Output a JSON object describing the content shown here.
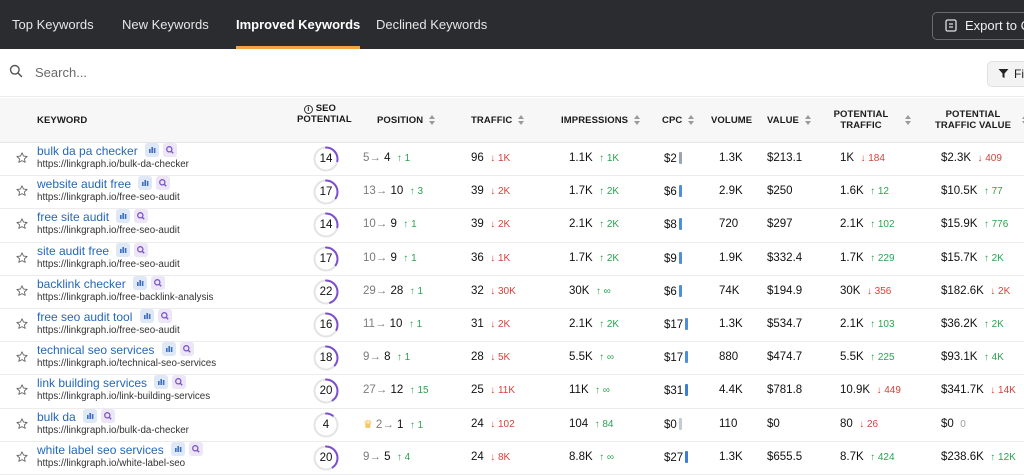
{
  "tabs": [
    {
      "label": "Top Keywords",
      "active": false
    },
    {
      "label": "New Keywords",
      "active": false
    },
    {
      "label": "Improved Keywords",
      "active": true
    },
    {
      "label": "Declined Keywords",
      "active": false
    }
  ],
  "export_label": "Export to CSV",
  "search": {
    "placeholder": "Search..."
  },
  "filter_label": "Filter",
  "columns": {
    "keyword": "KEYWORD",
    "seo_potential": "SEO POTENTIAL",
    "position": "POSITION",
    "traffic": "TRAFFIC",
    "impressions": "IMPRESSIONS",
    "cpc": "CPC",
    "volume": "VOLUME",
    "value": "VALUE",
    "potential_traffic_1": "POTENTIAL",
    "potential_traffic_2": "TRAFFIC",
    "potential_value_1": "POTENTIAL",
    "potential_value_2": "TRAFFIC VALUE"
  },
  "colors": {
    "up": "#2aa44f",
    "down": "#d8403a",
    "ring": "#7b4fd0",
    "link": "#2468b8"
  },
  "rows": [
    {
      "keyword": "bulk da pa checker",
      "url": "https://linkgraph.io/bulk-da-checker",
      "seo": "14",
      "seo_pct": 0.28,
      "pos_from": "5",
      "pos_to": "4",
      "pos_delta": "↑ 1",
      "pos_dir": "up",
      "crown": false,
      "traffic": "96",
      "traffic_delta": "↓ 1K",
      "traffic_dir": "down",
      "impr": "1.1K",
      "impr_delta": "↑ 1K",
      "impr_dir": "up",
      "cpc": "$2",
      "cpc_color": "#9aa4b5",
      "volume": "1.3K",
      "value": "$213.1",
      "pt": "1K",
      "pt_delta": "↓ 184",
      "pt_dir": "down",
      "ptv": "$2.3K",
      "ptv_delta": "↓ 409",
      "ptv_dir": "down"
    },
    {
      "keyword": "website audit free",
      "url": "https://linkgraph.io/free-seo-audit",
      "seo": "17",
      "seo_pct": 0.34,
      "pos_from": "13",
      "pos_to": "10",
      "pos_delta": "↑ 3",
      "pos_dir": "up",
      "crown": false,
      "traffic": "39",
      "traffic_delta": "↓ 2K",
      "traffic_dir": "down",
      "impr": "1.7K",
      "impr_delta": "↑ 2K",
      "impr_dir": "up",
      "cpc": "$6",
      "cpc_color": "#4f8fd6",
      "volume": "2.9K",
      "value": "$250",
      "pt": "1.6K",
      "pt_delta": "↑ 12",
      "pt_dir": "up",
      "ptv": "$10.5K",
      "ptv_delta": "↑ 77",
      "ptv_dir": "up"
    },
    {
      "keyword": "free site audit",
      "url": "https://linkgraph.io/free-seo-audit",
      "seo": "14",
      "seo_pct": 0.28,
      "pos_from": "10",
      "pos_to": "9",
      "pos_delta": "↑ 1",
      "pos_dir": "up",
      "crown": false,
      "traffic": "39",
      "traffic_delta": "↓ 2K",
      "traffic_dir": "down",
      "impr": "2.1K",
      "impr_delta": "↑ 2K",
      "impr_dir": "up",
      "cpc": "$8",
      "cpc_color": "#4f8fd6",
      "volume": "720",
      "value": "$297",
      "pt": "2.1K",
      "pt_delta": "↑ 102",
      "pt_dir": "up",
      "ptv": "$15.9K",
      "ptv_delta": "↑ 776",
      "ptv_dir": "up"
    },
    {
      "keyword": "site audit free",
      "url": "https://linkgraph.io/free-seo-audit",
      "seo": "17",
      "seo_pct": 0.34,
      "pos_from": "10",
      "pos_to": "9",
      "pos_delta": "↑ 1",
      "pos_dir": "up",
      "crown": false,
      "traffic": "36",
      "traffic_delta": "↓ 1K",
      "traffic_dir": "down",
      "impr": "1.7K",
      "impr_delta": "↑ 2K",
      "impr_dir": "up",
      "cpc": "$9",
      "cpc_color": "#4f8fd6",
      "volume": "1.9K",
      "value": "$332.4",
      "pt": "1.7K",
      "pt_delta": "↑ 229",
      "pt_dir": "up",
      "ptv": "$15.7K",
      "ptv_delta": "↑ 2K",
      "ptv_dir": "up"
    },
    {
      "keyword": "backlink checker",
      "url": "https://linkgraph.io/free-backlink-analysis",
      "seo": "22",
      "seo_pct": 0.44,
      "pos_from": "29",
      "pos_to": "28",
      "pos_delta": "↑ 1",
      "pos_dir": "up",
      "crown": false,
      "traffic": "32",
      "traffic_delta": "↓ 30K",
      "traffic_dir": "down",
      "impr": "30K",
      "impr_delta": "↑ ∞",
      "impr_dir": "up",
      "cpc": "$6",
      "cpc_color": "#4f8fd6",
      "volume": "74K",
      "value": "$194.9",
      "pt": "30K",
      "pt_delta": "↓ 356",
      "pt_dir": "down",
      "ptv": "$182.6K",
      "ptv_delta": "↓ 2K",
      "ptv_dir": "down"
    },
    {
      "keyword": "free seo audit tool",
      "url": "https://linkgraph.io/free-seo-audit",
      "seo": "16",
      "seo_pct": 0.32,
      "pos_from": "11",
      "pos_to": "10",
      "pos_delta": "↑ 1",
      "pos_dir": "up",
      "crown": false,
      "traffic": "31",
      "traffic_delta": "↓ 2K",
      "traffic_dir": "down",
      "impr": "2.1K",
      "impr_delta": "↑ 2K",
      "impr_dir": "up",
      "cpc": "$17",
      "cpc_color": "#4f8fd6",
      "volume": "1.3K",
      "value": "$534.7",
      "pt": "2.1K",
      "pt_delta": "↑ 103",
      "pt_dir": "up",
      "ptv": "$36.2K",
      "ptv_delta": "↑ 2K",
      "ptv_dir": "up"
    },
    {
      "keyword": "technical seo services",
      "url": "https://linkgraph.io/technical-seo-services",
      "seo": "18",
      "seo_pct": 0.36,
      "pos_from": "9",
      "pos_to": "8",
      "pos_delta": "↑ 1",
      "pos_dir": "up",
      "crown": false,
      "traffic": "28",
      "traffic_delta": "↓ 5K",
      "traffic_dir": "down",
      "impr": "5.5K",
      "impr_delta": "↑ ∞",
      "impr_dir": "up",
      "cpc": "$17",
      "cpc_color": "#4f8fd6",
      "volume": "880",
      "value": "$474.7",
      "pt": "5.5K",
      "pt_delta": "↑ 225",
      "pt_dir": "up",
      "ptv": "$93.1K",
      "ptv_delta": "↑ 4K",
      "ptv_dir": "up"
    },
    {
      "keyword": "link building services",
      "url": "https://linkgraph.io/link-building-services",
      "seo": "20",
      "seo_pct": 0.4,
      "pos_from": "27",
      "pos_to": "12",
      "pos_delta": "↑ 15",
      "pos_dir": "up",
      "crown": false,
      "traffic": "25",
      "traffic_delta": "↓ 11K",
      "traffic_dir": "down",
      "impr": "11K",
      "impr_delta": "↑ ∞",
      "impr_dir": "up",
      "cpc": "$31",
      "cpc_color": "#3a7fd0",
      "volume": "4.4K",
      "value": "$781.8",
      "pt": "10.9K",
      "pt_delta": "↓ 449",
      "pt_dir": "down",
      "ptv": "$341.7K",
      "ptv_delta": "↓ 14K",
      "ptv_dir": "down"
    },
    {
      "keyword": "bulk da",
      "url": "https://linkgraph.io/bulk-da-checker",
      "seo": "4",
      "seo_pct": 0.1,
      "pos_from": "2",
      "pos_to": "1",
      "pos_delta": "↑ 1",
      "pos_dir": "up",
      "crown": true,
      "traffic": "24",
      "traffic_delta": "↓ 102",
      "traffic_dir": "down",
      "impr": "104",
      "impr_delta": "↑ 84",
      "impr_dir": "up",
      "cpc": "$0",
      "cpc_color": "#c5cbd6",
      "volume": "110",
      "value": "$0",
      "pt": "80",
      "pt_delta": "↓ 26",
      "pt_dir": "down",
      "ptv": "$0",
      "ptv_delta": "0",
      "ptv_dir": "zero"
    },
    {
      "keyword": "white label seo services",
      "url": "https://linkgraph.io/white-label-seo",
      "seo": "20",
      "seo_pct": 0.4,
      "pos_from": "9",
      "pos_to": "5",
      "pos_delta": "↑ 4",
      "pos_dir": "up",
      "crown": false,
      "traffic": "24",
      "traffic_delta": "↓ 8K",
      "traffic_dir": "down",
      "impr": "8.8K",
      "impr_delta": "↑ ∞",
      "impr_dir": "up",
      "cpc": "$27",
      "cpc_color": "#3a7fd0",
      "volume": "1.3K",
      "value": "$655.5",
      "pt": "8.7K",
      "pt_delta": "↑ 424",
      "pt_dir": "up",
      "ptv": "$238.6K",
      "ptv_delta": "↑ 12K",
      "ptv_dir": "up"
    }
  ]
}
